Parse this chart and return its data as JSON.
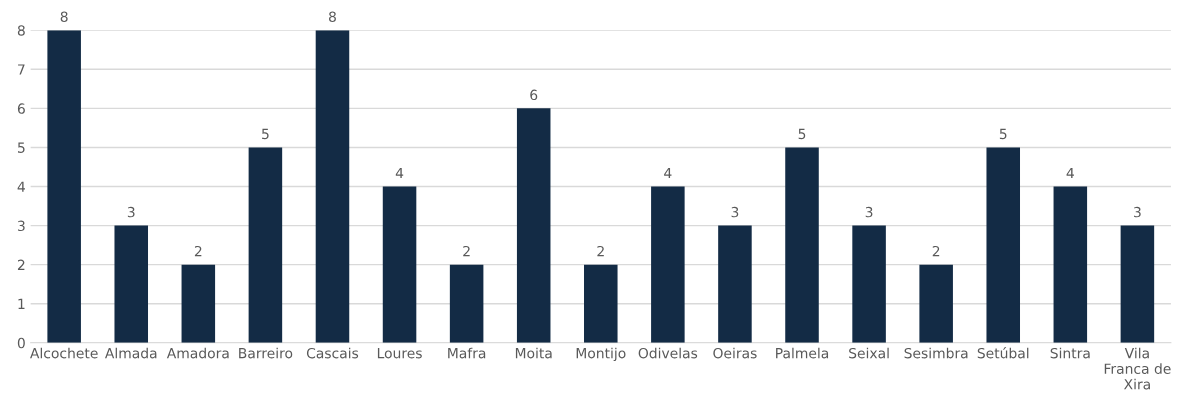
{
  "chart_data": {
    "type": "bar",
    "categories": [
      "Alcochete",
      "Almada",
      "Amadora",
      "Barreiro",
      "Cascais",
      "Loures",
      "Mafra",
      "Moita",
      "Montijo",
      "Odivelas",
      "Oeiras",
      "Palmela",
      "Seixal",
      "Sesimbra",
      "Setúbal",
      "Sintra",
      "Vila Franca de Xira"
    ],
    "values": [
      8,
      3,
      2,
      5,
      8,
      4,
      2,
      6,
      2,
      4,
      3,
      5,
      3,
      2,
      5,
      4,
      3
    ],
    "color": "#132b45",
    "ylim": [
      0,
      8
    ],
    "yticks": [
      0,
      1,
      2,
      3,
      4,
      5,
      6,
      7,
      8
    ],
    "grid": "y",
    "data_labels": true
  }
}
